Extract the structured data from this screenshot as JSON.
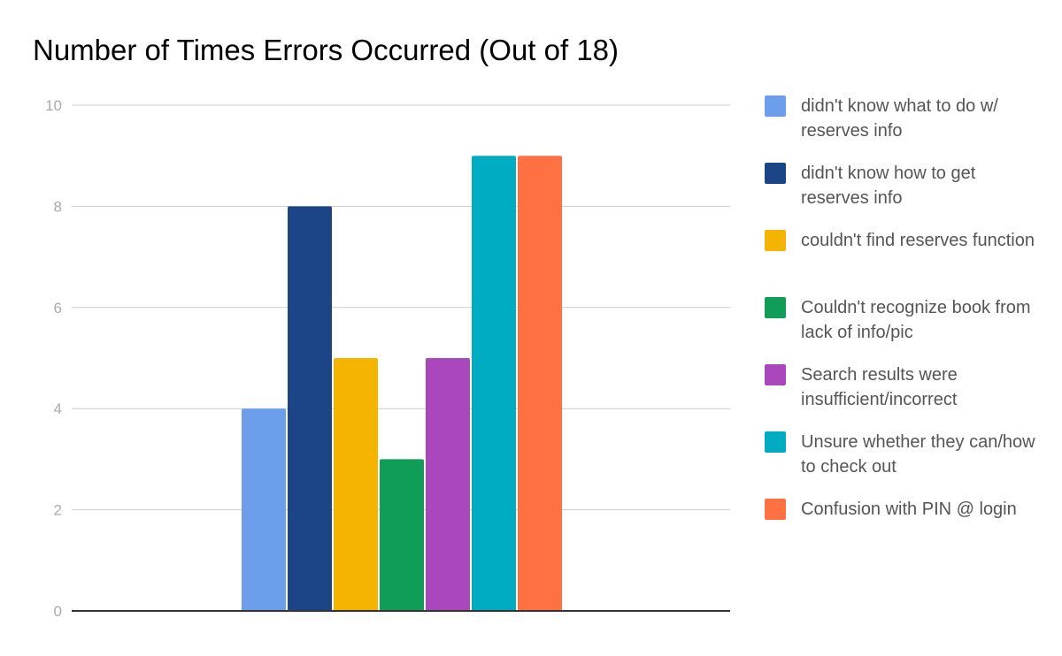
{
  "chart_data": {
    "type": "bar",
    "title": "Number of Times Errors Occurred (Out of 18)",
    "xlabel": "",
    "ylabel": "",
    "ylim": [
      0,
      10
    ],
    "yticks": [
      0,
      2,
      4,
      6,
      8,
      10
    ],
    "grid": true,
    "legend_position": "right",
    "categories": [
      ""
    ],
    "series": [
      {
        "name": "didn't know what to do w/ reserves info",
        "values": [
          4
        ],
        "color": "#6d9eeb"
      },
      {
        "name": "didn't know how to get reserves info",
        "values": [
          8
        ],
        "color": "#1c4587"
      },
      {
        "name": "couldn't find reserves function",
        "values": [
          5
        ],
        "color": "#f4b400"
      },
      {
        "name": "Couldn't recognize book from lack of info/pic",
        "values": [
          3
        ],
        "color": "#0f9d58"
      },
      {
        "name": "Search results were insufficient/incorrect",
        "values": [
          5
        ],
        "color": "#ab47bc"
      },
      {
        "name": "Unsure whether they can/how to check out",
        "values": [
          9
        ],
        "color": "#00acc1"
      },
      {
        "name": "Confusion with PIN @ login",
        "values": [
          9
        ],
        "color": "#ff7043"
      }
    ]
  }
}
